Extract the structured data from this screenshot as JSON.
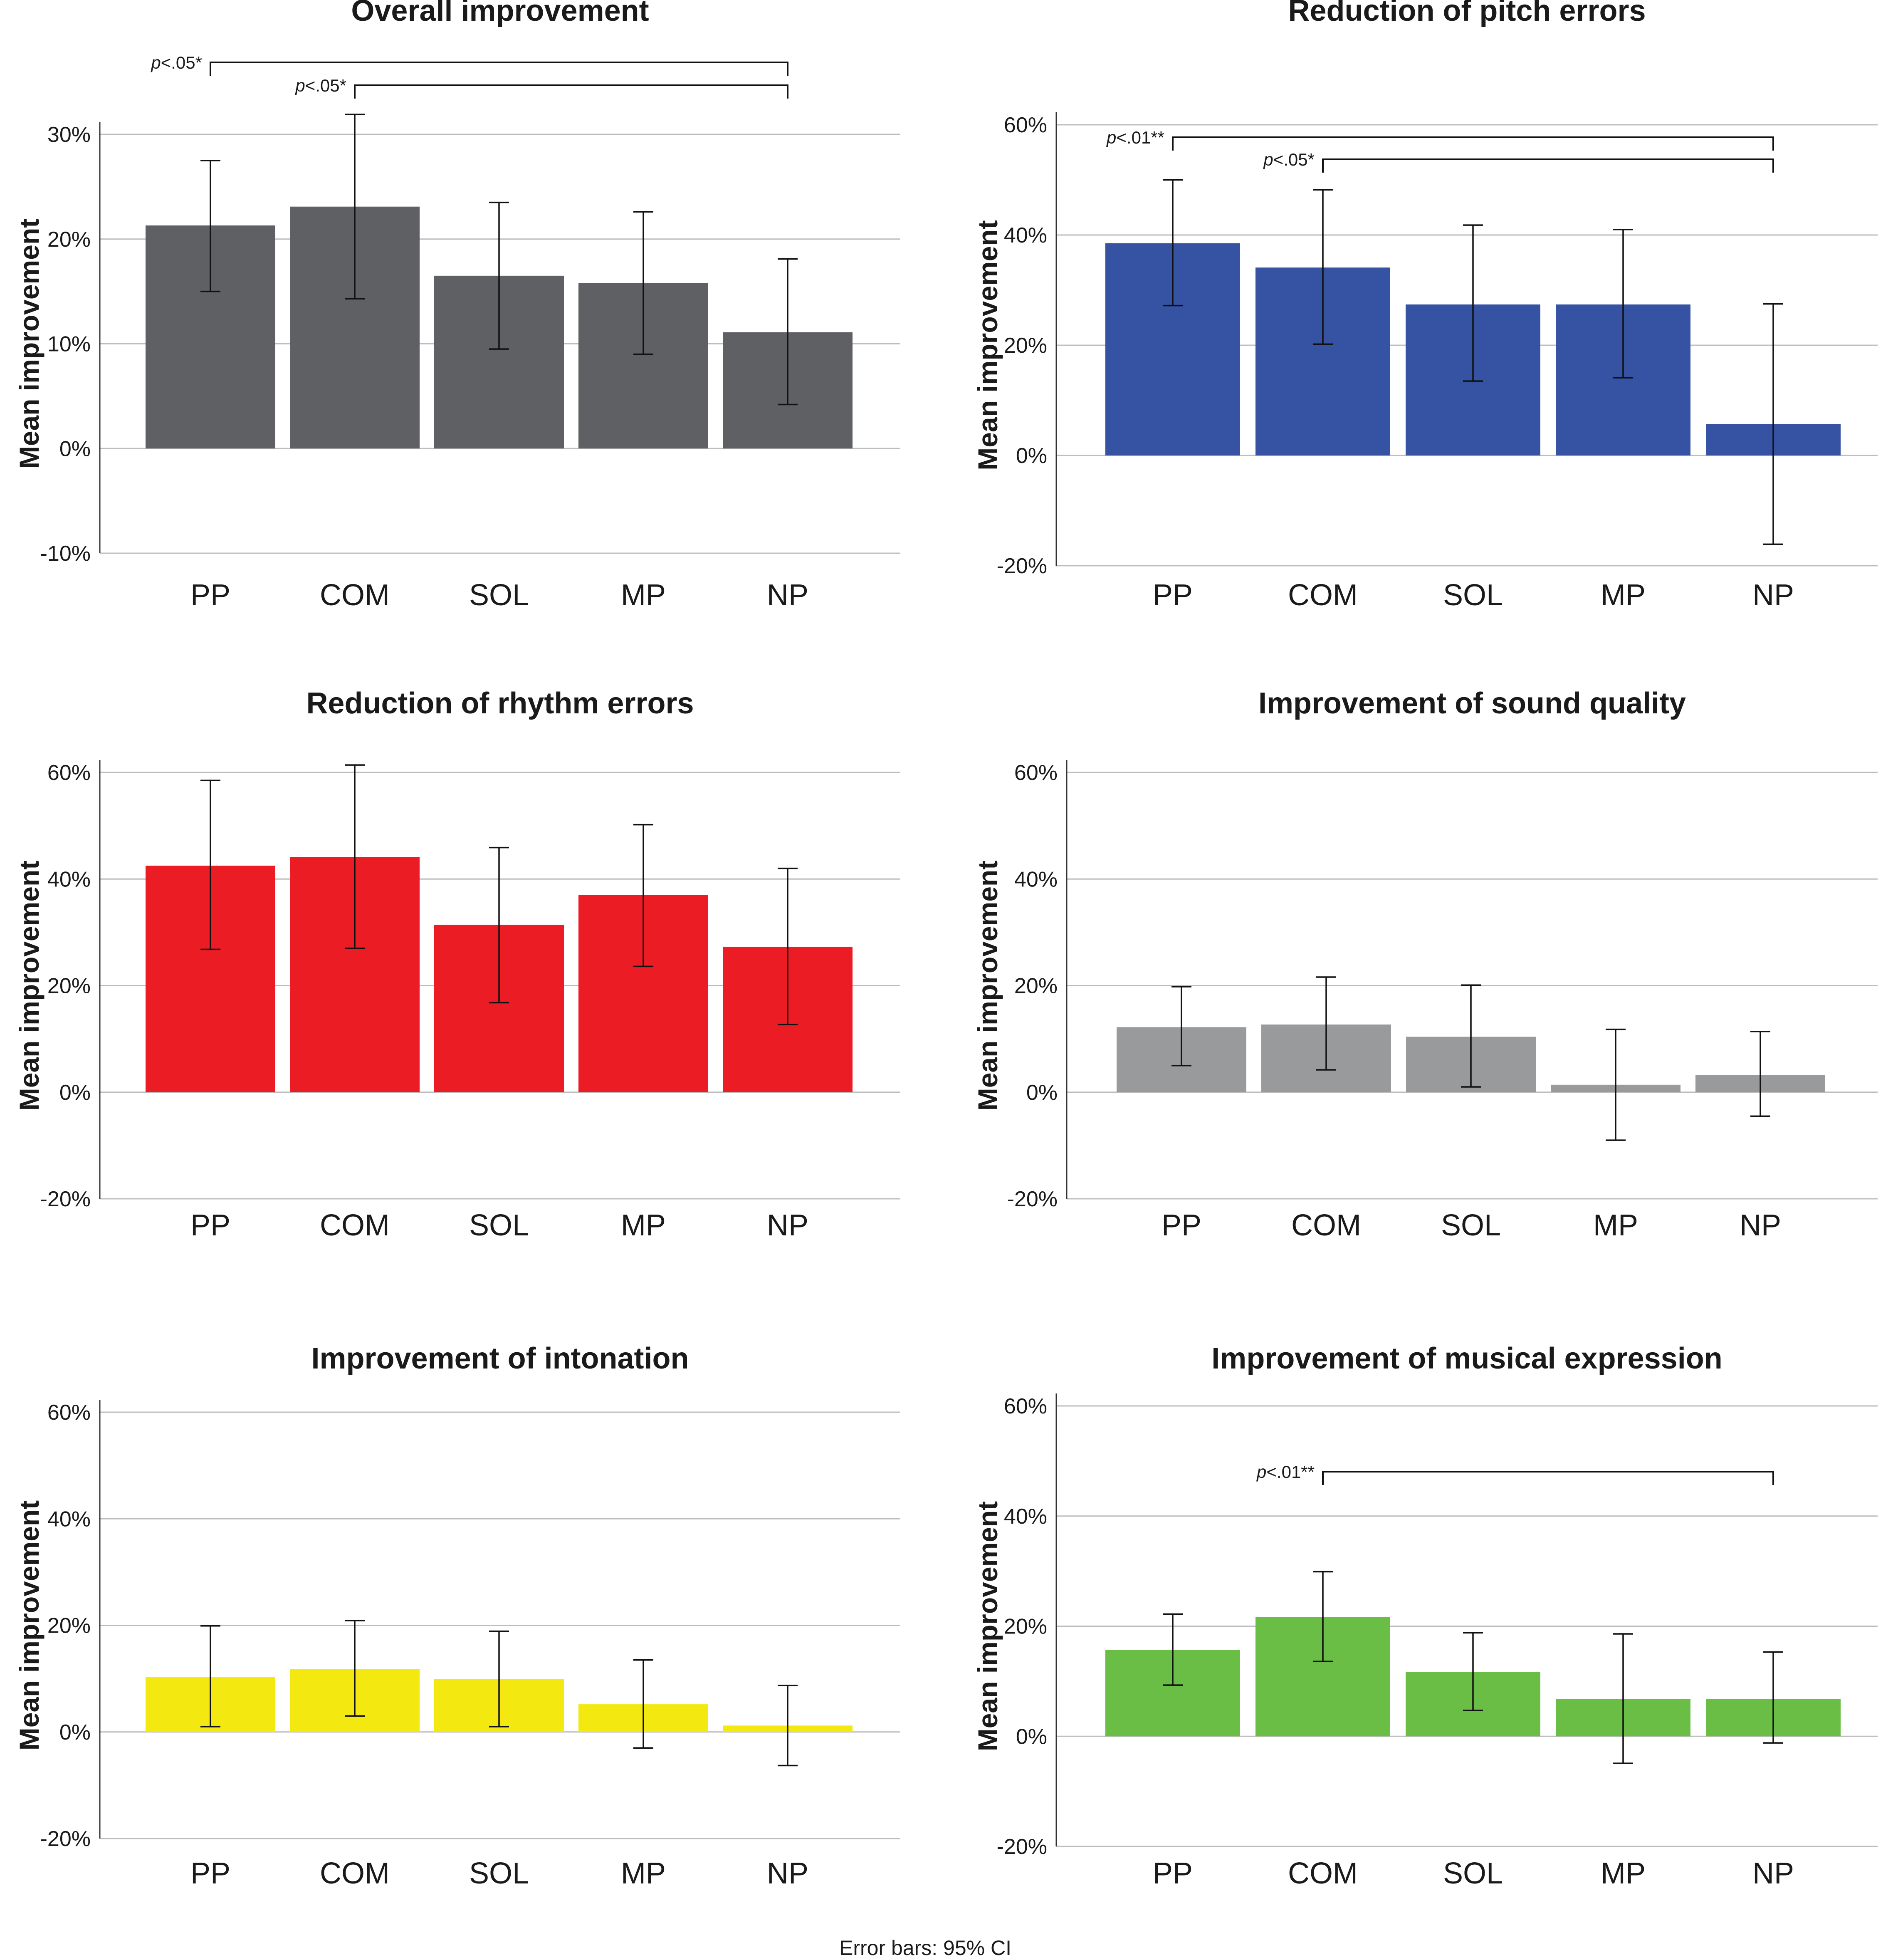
{
  "caption": "Error bars: 95% CI",
  "chart_data": [
    {
      "type": "bar",
      "title": "Overall improvement",
      "xlabel": "",
      "ylabel": "Mean improvement",
      "color": "#5f6064",
      "categories": [
        "PP",
        "COM",
        "SOL",
        "MP",
        "NP"
      ],
      "ylim": [
        -0.1,
        0.3
      ],
      "yticks": [
        -0.1,
        0.0,
        0.1,
        0.2,
        0.3
      ],
      "ytick_labels": [
        "-10%",
        "0%",
        "10%",
        "20%",
        "30%"
      ],
      "values": [
        0.213,
        0.231,
        0.165,
        0.158,
        0.111
      ],
      "ci_low": [
        0.15,
        0.143,
        0.095,
        0.09,
        0.042
      ],
      "ci_high": [
        0.275,
        0.319,
        0.235,
        0.226,
        0.181
      ],
      "brackets": [
        {
          "from": "PP",
          "to": "NP",
          "pre": "p",
          "label": "<.05*"
        },
        {
          "from": "COM",
          "to": "NP",
          "pre": "p",
          "label": "<.05*"
        }
      ]
    },
    {
      "type": "bar",
      "title": "Reduction of pitch errors",
      "xlabel": "",
      "ylabel": "Mean improvement",
      "color": "#3552a3",
      "categories": [
        "PP",
        "COM",
        "SOL",
        "MP",
        "NP"
      ],
      "ylim": [
        -0.2,
        0.6
      ],
      "yticks": [
        -0.2,
        0.0,
        0.2,
        0.4,
        0.6
      ],
      "ytick_labels": [
        "-20%",
        "0%",
        "20%",
        "40%",
        "60%"
      ],
      "values": [
        0.385,
        0.341,
        0.274,
        0.274,
        0.057
      ],
      "ci_low": [
        0.272,
        0.202,
        0.135,
        0.141,
        -0.161
      ],
      "ci_high": [
        0.5,
        0.482,
        0.418,
        0.41,
        0.275
      ],
      "brackets": [
        {
          "from": "PP",
          "to": "NP",
          "pre": "p",
          "label": "<.01**"
        },
        {
          "from": "COM",
          "to": "NP",
          "pre": "p",
          "label": "<.05*"
        }
      ]
    },
    {
      "type": "bar",
      "title": "Reduction of rhythm errors",
      "xlabel": "",
      "ylabel": "Mean improvement",
      "color": "#ec1c24",
      "categories": [
        "PP",
        "COM",
        "SOL",
        "MP",
        "NP"
      ],
      "ylim": [
        -0.2,
        0.6
      ],
      "yticks": [
        -0.2,
        0.0,
        0.2,
        0.4,
        0.6
      ],
      "ytick_labels": [
        "-20%",
        "0%",
        "20%",
        "40%",
        "60%"
      ],
      "values": [
        0.425,
        0.441,
        0.314,
        0.37,
        0.273
      ],
      "ci_low": [
        0.268,
        0.27,
        0.168,
        0.236,
        0.127
      ],
      "ci_high": [
        0.585,
        0.614,
        0.459,
        0.502,
        0.42
      ],
      "brackets": []
    },
    {
      "type": "bar",
      "title": "Improvement of sound quality",
      "xlabel": "",
      "ylabel": "Mean improvement",
      "color": "#999a9c",
      "categories": [
        "PP",
        "COM",
        "SOL",
        "MP",
        "NP"
      ],
      "ylim": [
        -0.2,
        0.6
      ],
      "yticks": [
        -0.2,
        0.0,
        0.2,
        0.4,
        0.6
      ],
      "ytick_labels": [
        "-20%",
        "0%",
        "20%",
        "40%",
        "60%"
      ],
      "values": [
        0.122,
        0.127,
        0.104,
        0.014,
        0.032
      ],
      "ci_low": [
        0.05,
        0.042,
        0.01,
        -0.09,
        -0.045
      ],
      "ci_high": [
        0.198,
        0.216,
        0.201,
        0.118,
        0.114
      ],
      "brackets": []
    },
    {
      "type": "bar",
      "title": "Improvement of intonation",
      "xlabel": "",
      "ylabel": "Mean improvement",
      "color": "#f3e911",
      "categories": [
        "PP",
        "COM",
        "SOL",
        "MP",
        "NP"
      ],
      "ylim": [
        -0.2,
        0.6
      ],
      "yticks": [
        -0.2,
        0.0,
        0.2,
        0.4,
        0.6
      ],
      "ytick_labels": [
        "-20%",
        "0%",
        "20%",
        "40%",
        "60%"
      ],
      "values": [
        0.103,
        0.118,
        0.099,
        0.052,
        0.012
      ],
      "ci_low": [
        0.01,
        0.03,
        0.01,
        -0.03,
        -0.063
      ],
      "ci_high": [
        0.199,
        0.209,
        0.189,
        0.135,
        0.087
      ],
      "brackets": []
    },
    {
      "type": "bar",
      "title": "Improvement of musical expression",
      "xlabel": "",
      "ylabel": "Mean improvement",
      "color": "#6abd45",
      "categories": [
        "PP",
        "COM",
        "SOL",
        "MP",
        "NP"
      ],
      "ylim": [
        -0.2,
        0.6
      ],
      "yticks": [
        -0.2,
        0.0,
        0.2,
        0.4,
        0.6
      ],
      "ytick_labels": [
        "-20%",
        "0%",
        "20%",
        "40%",
        "60%"
      ],
      "values": [
        0.157,
        0.217,
        0.117,
        0.068,
        0.068
      ],
      "ci_low": [
        0.093,
        0.136,
        0.047,
        -0.049,
        -0.012
      ],
      "ci_high": [
        0.222,
        0.299,
        0.188,
        0.186,
        0.153
      ],
      "brackets": [
        {
          "from": "COM",
          "to": "NP",
          "pre": "p",
          "label": "<.01**"
        }
      ]
    }
  ]
}
